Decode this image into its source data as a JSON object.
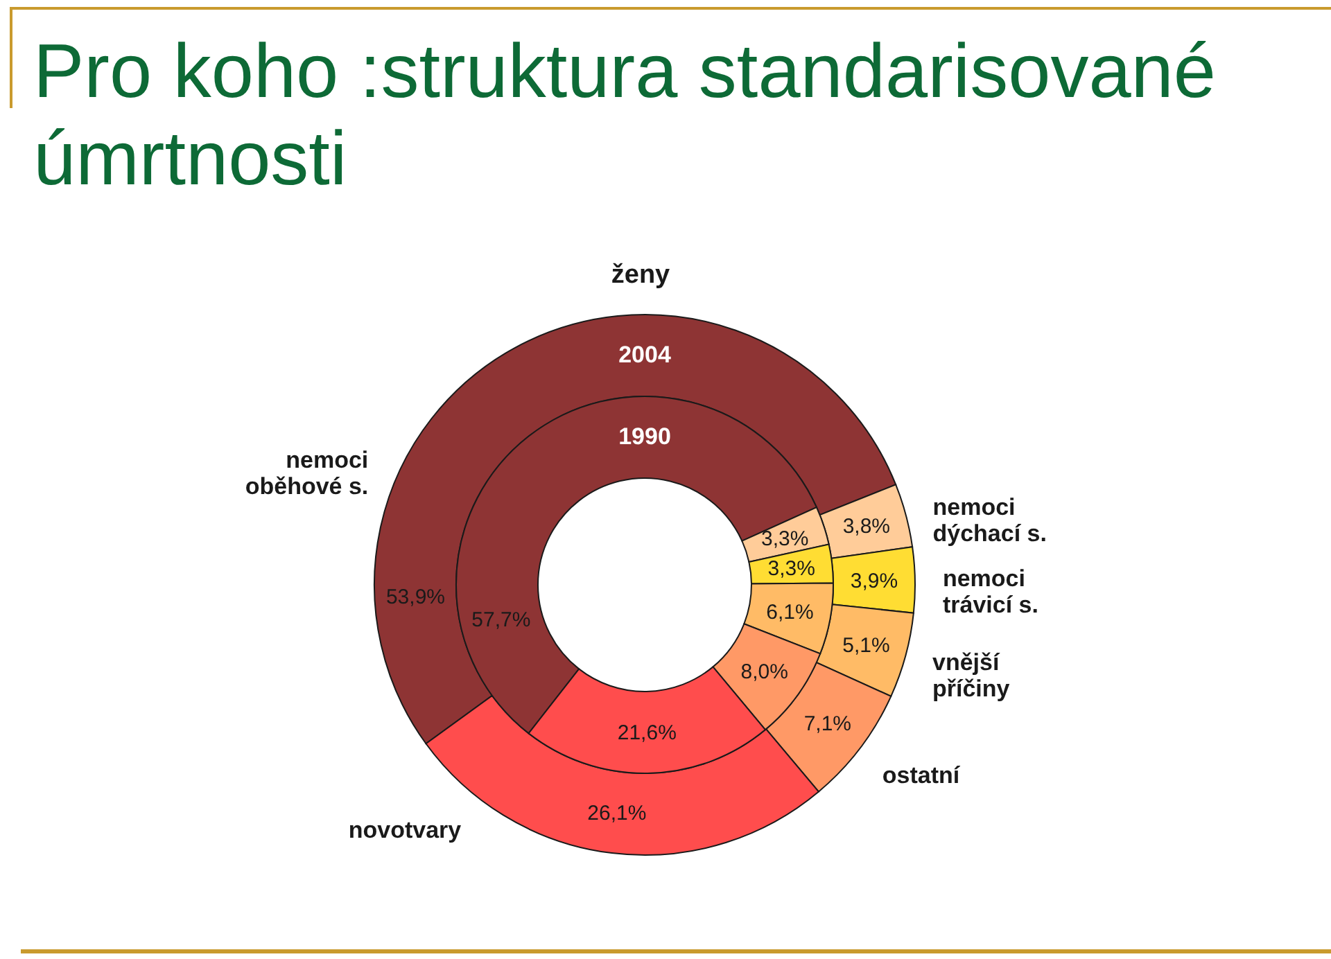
{
  "chart_data": {
    "type": "donut",
    "title": "Pro koho :struktura standarisované úmrtnosti",
    "subtitle": "ženy",
    "categories": [
      "nemoci\noběhové s.",
      "nemoci\ndýchací s.",
      "nemoci\ntrávicí s.",
      "vnější\npříčiny",
      "ostatní",
      "novotvary"
    ],
    "colors": [
      "#8e3434",
      "#ffcc99",
      "#ffdd33",
      "#ffbb66",
      "#ff9966",
      "#ff4d4d"
    ],
    "series": [
      {
        "name": "2004",
        "values": [
          53.9,
          3.8,
          3.9,
          5.1,
          7.1,
          26.1
        ],
        "value_labels": [
          "53,9%",
          "3,8%",
          "3,9%",
          "5,1%",
          "7,1%",
          "26,1%"
        ]
      },
      {
        "name": "1990",
        "values": [
          57.7,
          3.3,
          3.3,
          6.1,
          8.0,
          21.6
        ],
        "value_labels": [
          "57,7%",
          "3,3%",
          "3,3%",
          "6,1%",
          "8,0%",
          "21,6%"
        ]
      }
    ]
  }
}
